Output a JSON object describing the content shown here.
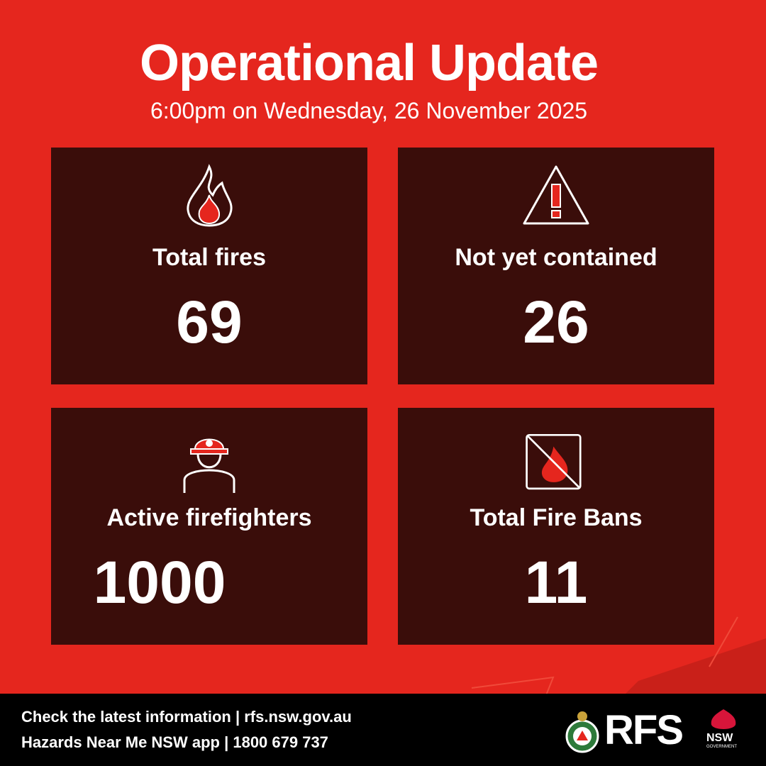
{
  "header": {
    "title": "Operational Update",
    "subtitle": "6:00pm on Wednesday, 26 November 2025"
  },
  "stats": [
    {
      "label": "Total fires",
      "value": "69",
      "icon": "flame-icon"
    },
    {
      "label": "Not yet contained",
      "value": "26",
      "icon": "warning-triangle-icon"
    },
    {
      "label": "Active firefighters",
      "value": "1000",
      "icon": "firefighter-icon"
    },
    {
      "label": "Total Fire Bans",
      "value": "11",
      "icon": "no-fire-icon"
    }
  ],
  "footer": {
    "line1": "Check the latest information | rfs.nsw.gov.au",
    "line2": "Hazards Near Me NSW app | 1800 679 737",
    "logo_rfs": "RFS",
    "logo_nsw": "NSW",
    "logo_nsw_sub": "GOVERNMENT"
  },
  "colors": {
    "background": "#e5261e",
    "panel": "#3a0d0a",
    "footer": "#000000"
  }
}
